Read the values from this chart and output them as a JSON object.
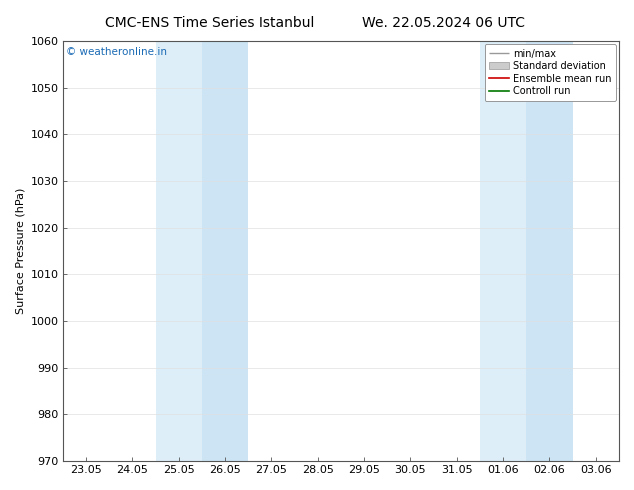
{
  "title_left": "CMC-ENS Time Series Istanbul",
  "title_right": "We. 22.05.2024 06 UTC",
  "ylabel": "Surface Pressure (hPa)",
  "ylim": [
    970,
    1060
  ],
  "yticks": [
    970,
    980,
    990,
    1000,
    1010,
    1020,
    1030,
    1040,
    1050,
    1060
  ],
  "xtick_labels": [
    "23.05",
    "24.05",
    "25.05",
    "26.05",
    "27.05",
    "28.05",
    "29.05",
    "30.05",
    "31.05",
    "01.06",
    "02.06",
    "03.06"
  ],
  "xtick_positions": [
    0,
    1,
    2,
    3,
    4,
    5,
    6,
    7,
    8,
    9,
    10,
    11
  ],
  "shaded_bands": [
    {
      "xstart": 1.5,
      "xend": 2.5,
      "color": "#ddeef8"
    },
    {
      "xstart": 2.5,
      "xend": 3.5,
      "color": "#cce4f4"
    },
    {
      "xstart": 8.5,
      "xend": 9.5,
      "color": "#ddeef8"
    },
    {
      "xstart": 9.5,
      "xend": 10.5,
      "color": "#cce4f4"
    }
  ],
  "watermark_text": "© weatheronline.in",
  "watermark_color": "#1a6ab5",
  "legend_entries": [
    {
      "label": "min/max",
      "color": "#aaaaaa",
      "style": "minmax"
    },
    {
      "label": "Standard deviation",
      "color": "#cccccc",
      "style": "stddev"
    },
    {
      "label": "Ensemble mean run",
      "color": "#dd0000",
      "style": "line"
    },
    {
      "label": "Controll run",
      "color": "#006600",
      "style": "line"
    }
  ],
  "background_color": "#ffffff",
  "plot_bg_color": "#ffffff",
  "title_fontsize": 10,
  "axis_fontsize": 8,
  "tick_fontsize": 8
}
